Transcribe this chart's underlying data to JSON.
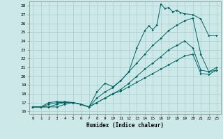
{
  "xlabel": "Humidex (Indice chaleur)",
  "bg_color": "#cce8e8",
  "grid_color": "#aacccc",
  "line_color": "#006666",
  "xlim": [
    -0.5,
    23.5
  ],
  "ylim": [
    15.7,
    28.5
  ],
  "xticks": [
    0,
    1,
    2,
    3,
    4,
    5,
    6,
    7,
    8,
    9,
    10,
    11,
    12,
    13,
    14,
    15,
    16,
    17,
    18,
    19,
    20,
    21,
    22,
    23
  ],
  "yticks": [
    16,
    17,
    18,
    19,
    20,
    21,
    22,
    23,
    24,
    25,
    26,
    27,
    28
  ],
  "lines": [
    {
      "x": [
        0,
        1,
        2,
        3,
        4,
        5,
        6,
        7,
        8,
        9,
        10,
        11,
        12,
        13,
        14,
        14.5,
        15,
        15.5,
        16,
        16.5,
        17,
        17.5,
        18,
        18.5,
        19,
        20,
        21,
        22,
        23
      ],
      "y": [
        16.5,
        16.5,
        17,
        17.1,
        17.1,
        17,
        16.8,
        16.5,
        18.2,
        19.2,
        18.8,
        19.5,
        20.5,
        23.2,
        25.2,
        25.7,
        25.3,
        25.8,
        28.2,
        27.7,
        27.8,
        27.3,
        27.5,
        27.2,
        27.1,
        27.0,
        26.5,
        24.6,
        24.6
      ]
    },
    {
      "x": [
        0,
        1,
        2,
        3,
        4,
        5,
        6,
        7,
        8,
        9,
        10,
        11,
        12,
        13,
        14,
        15,
        16,
        17,
        18,
        19,
        20,
        21,
        22,
        23
      ],
      "y": [
        16.5,
        16.5,
        16.8,
        17.0,
        17.0,
        17.0,
        16.8,
        16.5,
        17.5,
        18.2,
        18.7,
        19.5,
        20.5,
        21.5,
        22.5,
        23.5,
        24.3,
        25.2,
        25.8,
        26.3,
        26.6,
        22.5,
        20.5,
        20.7
      ]
    },
    {
      "x": [
        0,
        1,
        2,
        3,
        4,
        5,
        6,
        7,
        8,
        9,
        10,
        11,
        12,
        13,
        14,
        15,
        16,
        17,
        18,
        19,
        20,
        21,
        22,
        23
      ],
      "y": [
        16.5,
        16.5,
        16.5,
        16.8,
        17.0,
        17.0,
        16.8,
        16.5,
        17.0,
        17.5,
        18.0,
        18.5,
        19.2,
        20.0,
        20.8,
        21.5,
        22.2,
        23.0,
        23.5,
        24.0,
        23.2,
        20.7,
        20.5,
        21.0
      ]
    },
    {
      "x": [
        0,
        1,
        2,
        3,
        4,
        5,
        6,
        7,
        8,
        9,
        10,
        11,
        12,
        13,
        14,
        15,
        16,
        17,
        18,
        19,
        20,
        21,
        22,
        23
      ],
      "y": [
        16.5,
        16.5,
        16.5,
        16.5,
        16.8,
        17.0,
        16.8,
        16.5,
        17.0,
        17.5,
        18.0,
        18.3,
        18.8,
        19.3,
        19.8,
        20.3,
        20.8,
        21.3,
        21.8,
        22.3,
        22.5,
        20.3,
        20.2,
        20.7
      ]
    }
  ]
}
